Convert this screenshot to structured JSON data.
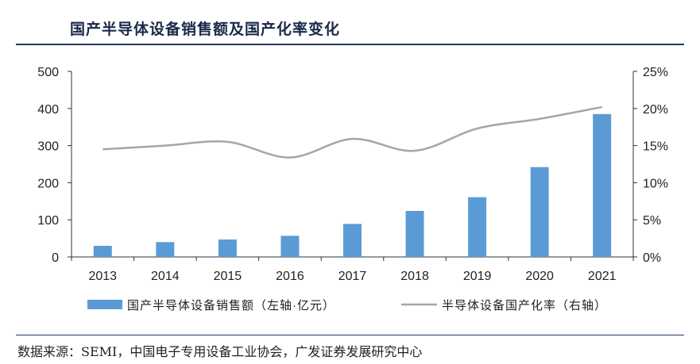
{
  "title": "国产半导体设备销售额及国产化率变化",
  "source": "数据来源：SEMI，中国电子专用设备工业协会，广发证券发展研究中心",
  "chart_data": {
    "type": "bar",
    "categories": [
      "2013",
      "2014",
      "2015",
      "2016",
      "2017",
      "2018",
      "2019",
      "2020",
      "2021"
    ],
    "series": [
      {
        "name": "国产半导体设备销售额（左轴·亿元）",
        "type": "bar",
        "axis": "left",
        "values": [
          30,
          40,
          47,
          57,
          89,
          124,
          161,
          242,
          385
        ],
        "color": "#5b9bd5"
      },
      {
        "name": "半导体设备国产化率（右轴）",
        "type": "line",
        "axis": "right",
        "values": [
          14.5,
          15.0,
          15.5,
          13.4,
          15.9,
          14.3,
          17.3,
          18.6,
          20.2
        ],
        "color": "#a6a6a6"
      }
    ],
    "left_axis": {
      "ylim": [
        0,
        500
      ],
      "ticks": [
        0,
        100,
        200,
        300,
        400,
        500
      ]
    },
    "right_axis": {
      "ylim": [
        0,
        25
      ],
      "ticks": [
        "0%",
        "5%",
        "10%",
        "15%",
        "20%",
        "25%"
      ]
    },
    "grid": false,
    "legend": "bottom"
  }
}
